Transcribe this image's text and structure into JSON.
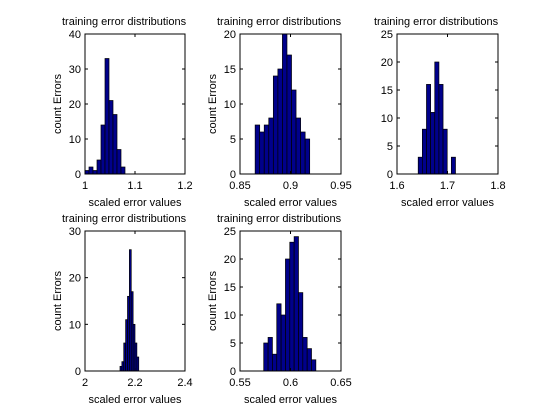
{
  "style": {
    "bar_fill": "#00008B",
    "bar_edge": "#000000",
    "axes_color": "#000000",
    "background": "#ffffff"
  },
  "chart_data": [
    {
      "type": "bar",
      "title": "training error distributions",
      "xlabel": "scaled error values",
      "ylabel": "count Errors",
      "xlim": [
        1,
        1.2
      ],
      "ylim": [
        0,
        40
      ],
      "xticks": [
        "1",
        "1.1",
        "1.2"
      ],
      "yticks": [
        "0",
        "10",
        "20",
        "30",
        "40"
      ],
      "bin_start": 1.0,
      "bin_width": 0.008,
      "values": [
        1,
        2,
        1,
        4,
        14,
        33,
        21,
        17,
        7,
        2
      ],
      "grid": false
    },
    {
      "type": "bar",
      "title": "training error distributions",
      "xlabel": "scaled error values",
      "ylabel": "count Errors",
      "xlim": [
        0.85,
        0.95
      ],
      "ylim": [
        0,
        20
      ],
      "xticks": [
        "0.85",
        "0.9",
        "0.95"
      ],
      "yticks": [
        "0",
        "5",
        "10",
        "15",
        "20"
      ],
      "bin_start": 0.865,
      "bin_width": 0.0045,
      "values": [
        7,
        6,
        7,
        8,
        14,
        15,
        20,
        17,
        12,
        8,
        6,
        5
      ],
      "grid": false
    },
    {
      "type": "bar",
      "title": "training error distributions",
      "xlabel": "scaled error values",
      "ylabel": "",
      "xlim": [
        1.6,
        1.8
      ],
      "ylim": [
        0,
        25
      ],
      "xticks": [
        "1.6",
        "1.7",
        "1.8"
      ],
      "yticks": [
        "0",
        "5",
        "10",
        "15",
        "20",
        "25"
      ],
      "bin_start": 1.642,
      "bin_width": 0.0082,
      "values": [
        3,
        8,
        16,
        11,
        20,
        16,
        8,
        0,
        3
      ],
      "grid": false
    },
    {
      "type": "bar",
      "title": "training error distributions",
      "xlabel": "scaled error values",
      "ylabel": "count Errors",
      "xlim": [
        2,
        2.4
      ],
      "ylim": [
        0,
        30
      ],
      "xticks": [
        "2",
        "2.2",
        "2.4"
      ],
      "yticks": [
        "0",
        "10",
        "20",
        "30"
      ],
      "bin_start": 2.14,
      "bin_width": 0.0075,
      "values": [
        1,
        2,
        6,
        11,
        16,
        26,
        17,
        10,
        6,
        3
      ],
      "grid": false
    },
    {
      "type": "bar",
      "title": "training error distributions",
      "xlabel": "scaled error values",
      "ylabel": "count Errors",
      "xlim": [
        0.55,
        0.65
      ],
      "ylim": [
        0,
        25
      ],
      "xticks": [
        "0.55",
        "0.6",
        "0.65"
      ],
      "yticks": [
        "0",
        "5",
        "10",
        "15",
        "20",
        "25"
      ],
      "bin_start": 0.5735,
      "bin_width": 0.0043,
      "values": [
        5,
        6,
        3,
        12,
        10,
        20,
        23,
        24,
        14,
        6,
        4,
        2
      ],
      "grid": false
    }
  ]
}
